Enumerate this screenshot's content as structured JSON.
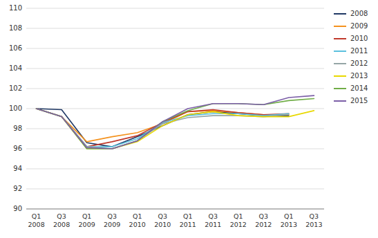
{
  "chart_data": {
    "type": "line",
    "categories": [
      "Q1\n2008",
      "Q3\n2008",
      "Q1\n2009",
      "Q3\n2009",
      "Q1\n2010",
      "Q3\n2010",
      "Q1\n2011",
      "Q3\n2011",
      "Q1\n2012",
      "Q3\n2012",
      "Q1\n2013",
      "Q3\n2013"
    ],
    "series": [
      {
        "name": "2008",
        "color": "#1f3864",
        "values": [
          100.0,
          99.9,
          96.6,
          96.2,
          97.2,
          98.3,
          99.4,
          99.7,
          99.5,
          99.3,
          99.3,
          null
        ]
      },
      {
        "name": "2009",
        "color": "#f4921e",
        "values": [
          100.0,
          99.2,
          96.7,
          97.2,
          97.6,
          98.5,
          99.7,
          99.8,
          99.6,
          99.4,
          99.4,
          null
        ]
      },
      {
        "name": "2010",
        "color": "#c0392b",
        "values": [
          100.0,
          99.2,
          96.2,
          96.7,
          97.3,
          98.6,
          99.7,
          99.9,
          99.6,
          99.4,
          99.5,
          null
        ]
      },
      {
        "name": "2011",
        "color": "#5bc0de",
        "values": [
          100.0,
          99.2,
          96.2,
          96.2,
          97.0,
          98.6,
          99.3,
          99.5,
          99.5,
          99.3,
          99.5,
          null
        ]
      },
      {
        "name": "2012",
        "color": "#95a5a6",
        "values": [
          100.0,
          99.2,
          96.2,
          96.0,
          96.8,
          98.5,
          99.1,
          99.3,
          99.3,
          99.2,
          99.4,
          null
        ]
      },
      {
        "name": "2013",
        "color": "#e8d800",
        "values": [
          100.0,
          99.2,
          96.0,
          96.0,
          96.7,
          98.3,
          99.4,
          99.7,
          99.3,
          99.2,
          99.2,
          99.8
        ]
      },
      {
        "name": "2014",
        "color": "#70ad47",
        "values": [
          100.0,
          99.2,
          96.0,
          96.0,
          96.8,
          98.7,
          99.8,
          100.5,
          100.5,
          100.4,
          100.8,
          101.0
        ]
      },
      {
        "name": "2015",
        "color": "#7b5ea7",
        "values": [
          100.0,
          99.2,
          96.1,
          96.0,
          96.8,
          98.7,
          100.0,
          100.5,
          100.5,
          100.4,
          101.1,
          101.3
        ]
      }
    ],
    "ylim": [
      90,
      110
    ],
    "yticks": [
      90,
      92,
      94,
      96,
      98,
      100,
      102,
      104,
      106,
      108,
      110
    ],
    "grid": true,
    "legend": "right"
  }
}
